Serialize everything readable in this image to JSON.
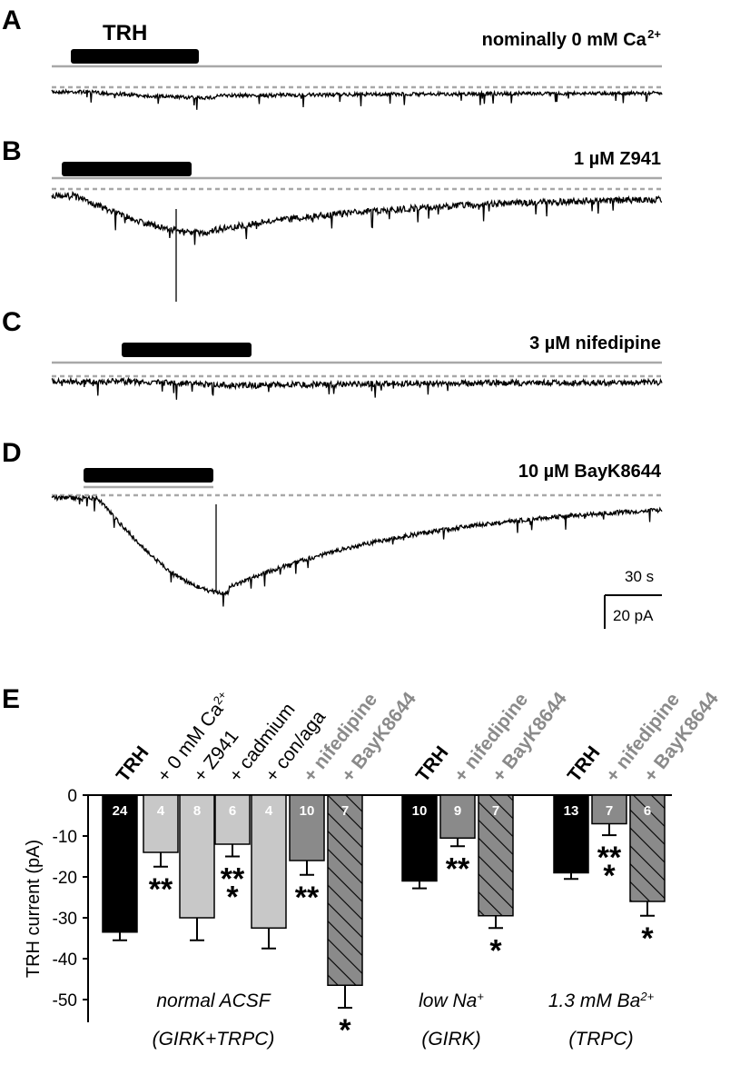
{
  "traces": [
    {
      "id": "A",
      "letter": "A",
      "condition": "nominally 0 mM Ca",
      "condition_sup": "2+",
      "drug_label": "TRH",
      "bar_start": 0.035,
      "bar_end": 0.24,
      "depth": 0.25,
      "noise": 0.4,
      "baseline": 0.85
    },
    {
      "id": "B",
      "letter": "B",
      "condition": "1 µM Z941",
      "condition_sup": "",
      "drug_label": "",
      "bar_start": 0.018,
      "bar_end": 0.225,
      "depth": 0.75,
      "noise": 0.5,
      "baseline": 0.1
    },
    {
      "id": "C",
      "letter": "C",
      "condition": "3 µM nifedipine",
      "condition_sup": "",
      "drug_label": "",
      "bar_start": 0.12,
      "bar_end": 0.325,
      "depth": 0.3,
      "noise": 0.55,
      "baseline": 0.4
    },
    {
      "id": "D",
      "letter": "D",
      "condition": "10 µM BayK8644",
      "condition_sup": "",
      "drug_label": "",
      "bar_start": 0.055,
      "bar_end": 0.26,
      "depth": 1.0,
      "noise": 0.4,
      "baseline": 0.15
    }
  ],
  "scalebar": {
    "time": "30 s",
    "current": "20 pA"
  },
  "chart_data": {
    "type": "bar",
    "panel_letter": "E",
    "ylabel": "TRH current (pA)",
    "ylim": [
      -55,
      0
    ],
    "yticks": [
      0,
      -10,
      -20,
      -30,
      -40,
      -50
    ],
    "bars": [
      {
        "label": "TRH",
        "label_sup": "",
        "style": "bold",
        "value": -33.5,
        "error": 2.0,
        "n": "24",
        "color": "#000000",
        "hatch": false,
        "stars": ""
      },
      {
        "label": "+ 0 mM Ca",
        "label_sup": "2+",
        "style": "normal",
        "value": -14,
        "error": 3.5,
        "n": "4",
        "color": "#c8c8c8",
        "hatch": false,
        "stars": "**"
      },
      {
        "label": "+ Z941",
        "label_sup": "",
        "style": "normal",
        "value": -30,
        "error": 5.5,
        "n": "8",
        "color": "#c8c8c8",
        "hatch": false,
        "stars": ""
      },
      {
        "label": "+ cadmium",
        "label_sup": "",
        "style": "normal",
        "value": -12,
        "error": 3.0,
        "n": "6",
        "color": "#c8c8c8",
        "hatch": false,
        "stars": "**\n*"
      },
      {
        "label": "+ con/aga",
        "label_sup": "",
        "style": "normal",
        "value": -32.5,
        "error": 5.0,
        "n": "4",
        "color": "#c8c8c8",
        "hatch": false,
        "stars": ""
      },
      {
        "label": "+ nifedipine",
        "label_sup": "",
        "style": "gray",
        "value": -16,
        "error": 3.5,
        "n": "10",
        "color": "#8a8a8a",
        "hatch": false,
        "stars": "**"
      },
      {
        "label": "+ BayK8644",
        "label_sup": "",
        "style": "gray",
        "value": -46.5,
        "error": 5.5,
        "n": "7",
        "color": "#8a8a8a",
        "hatch": true,
        "stars": "*"
      },
      {
        "label": "TRH",
        "label_sup": "",
        "style": "bold",
        "value": -21,
        "error": 1.8,
        "n": "10",
        "color": "#000000",
        "hatch": false,
        "stars": ""
      },
      {
        "label": "+ nifedipine",
        "label_sup": "",
        "style": "gray",
        "value": -10.5,
        "error": 2.0,
        "n": "9",
        "color": "#8a8a8a",
        "hatch": false,
        "stars": "**"
      },
      {
        "label": "+ BayK8644",
        "label_sup": "",
        "style": "gray",
        "value": -29.5,
        "error": 3.0,
        "n": "7",
        "color": "#8a8a8a",
        "hatch": true,
        "stars": "*"
      },
      {
        "label": "TRH",
        "label_sup": "",
        "style": "bold",
        "value": -19,
        "error": 1.5,
        "n": "13",
        "color": "#000000",
        "hatch": false,
        "stars": ""
      },
      {
        "label": "+ nifedipine",
        "label_sup": "",
        "style": "gray",
        "value": -7,
        "error": 2.8,
        "n": "7",
        "color": "#8a8a8a",
        "hatch": false,
        "stars": "**\n*"
      },
      {
        "label": "+ BayK8644",
        "label_sup": "",
        "style": "gray",
        "value": -26,
        "error": 3.5,
        "n": "6",
        "color": "#8a8a8a",
        "hatch": true,
        "stars": "*"
      }
    ],
    "groups": [
      {
        "line1": "normal ACSF",
        "line1_sup": "",
        "line2": "(GIRK+TRPC)"
      },
      {
        "line1": "low Na",
        "line1_sup": "+",
        "line2": "(GIRK)"
      },
      {
        "line1": "1.3 mM Ba",
        "line1_sup": "2+",
        "line2": "(TRPC)"
      }
    ]
  }
}
